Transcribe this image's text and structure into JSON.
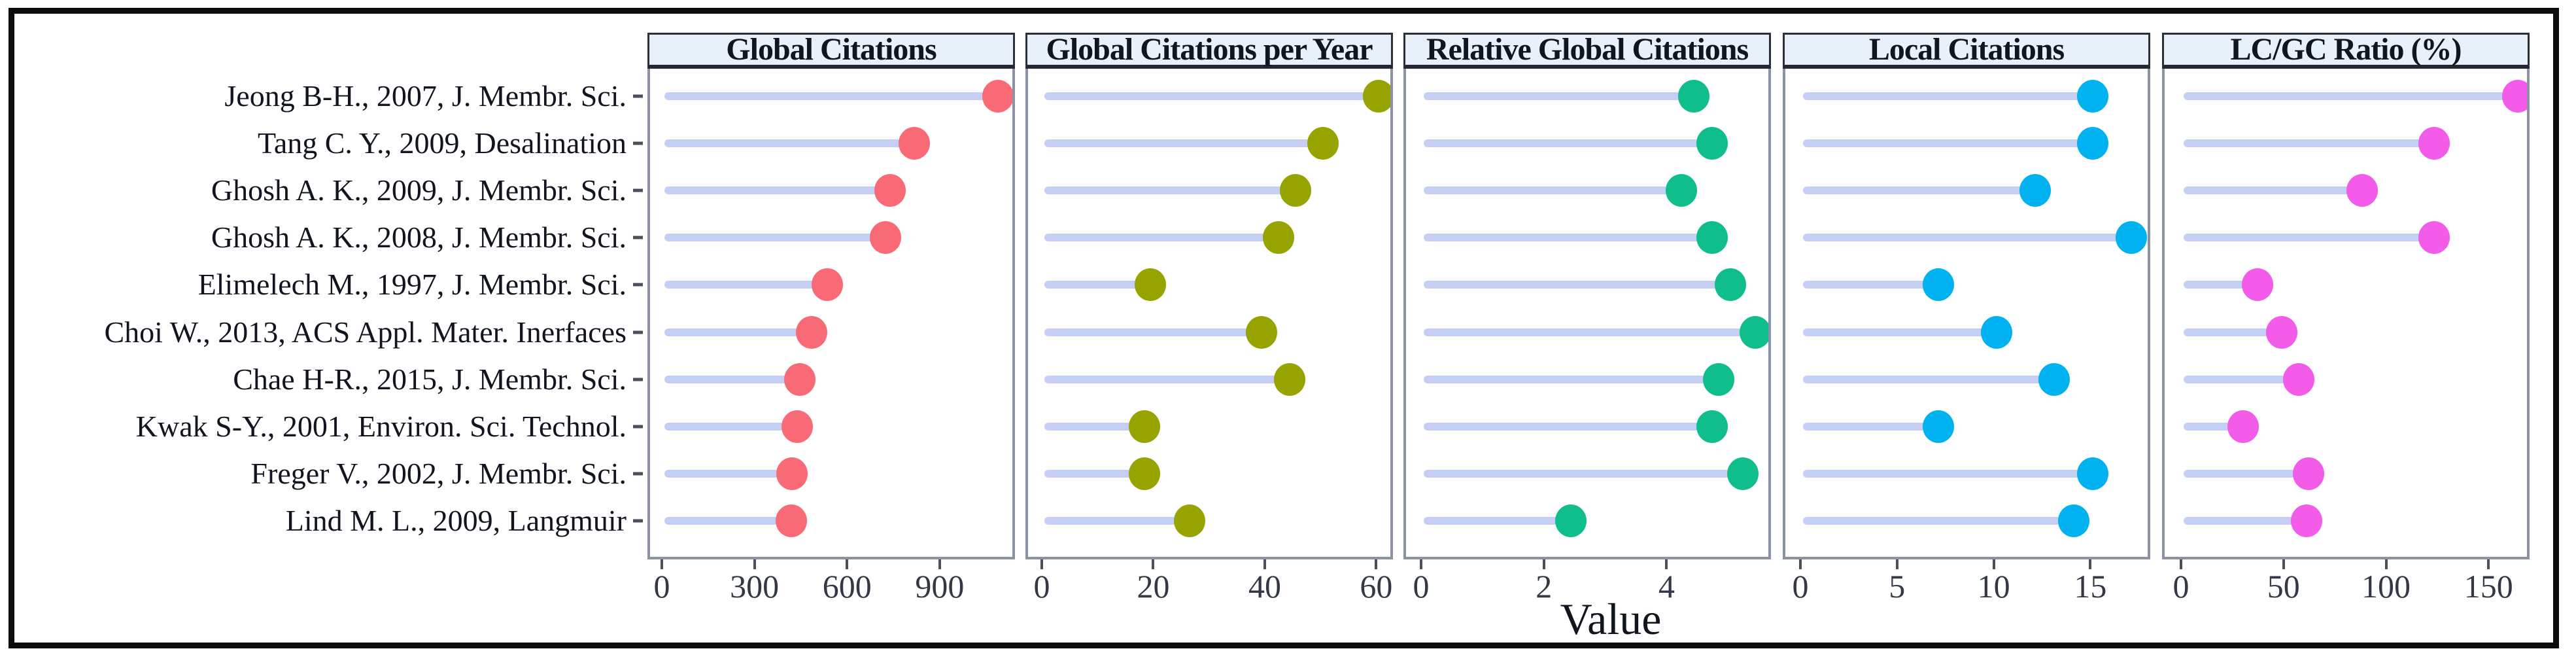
{
  "chart_data": {
    "type": "dot",
    "variant": "faceted horizontal lollipop chart (most cited documents)",
    "xlabel": "Value",
    "grid": "off",
    "legend": "none",
    "rows": [
      "Jeong B-H., 2007, J. Membr. Sci.",
      "Tang C. Y., 2009, Desalination",
      "Ghosh A. K., 2009, J. Membr. Sci.",
      "Ghosh A. K., 2008, J. Membr. Sci.",
      "Elimelech M., 1997, J. Membr. Sci.",
      "Choi W., 2013, ACS Appl. Mater. Inerfaces",
      "Chae H-R., 2015, J. Membr. Sci.",
      "Kwak S-Y., 2001, Environ. Sci. Technol.",
      "Freger V., 2002, J. Membr. Sci.",
      "Lind M. L., 2009, Langmuir"
    ],
    "panels": [
      {
        "title": "Global Citations",
        "color": "#f96a77",
        "ticks": [
          0,
          300,
          600,
          900
        ],
        "xlim": [
          0,
          1144
        ],
        "values": [
          1080,
          810,
          730,
          715,
          527,
          476,
          438,
          430,
          414,
          410
        ]
      },
      {
        "title": "Global Citations per Year",
        "color": "#97a400",
        "ticks": [
          0,
          20,
          40,
          60
        ],
        "xlim": [
          0,
          63
        ],
        "values": [
          60,
          50,
          45,
          42,
          19,
          39,
          44,
          18,
          18,
          26
        ]
      },
      {
        "title": "Relative Global Citations",
        "color": "#10be8c",
        "ticks": [
          0,
          2,
          4
        ],
        "xlim": [
          0,
          5.7
        ],
        "values": [
          4.4,
          4.7,
          4.2,
          4.7,
          5.0,
          5.4,
          4.8,
          4.7,
          5.2,
          2.4
        ]
      },
      {
        "title": "Local Citations",
        "color": "#00b3f0",
        "ticks": [
          0,
          5,
          10,
          15
        ],
        "xlim": [
          0,
          18.1
        ],
        "values": [
          15,
          15,
          12,
          17,
          7,
          10,
          13,
          7,
          15,
          14
        ]
      },
      {
        "title": "LC/GC Ratio (%)",
        "color": "#f25ce9",
        "ticks": [
          0,
          50,
          100,
          150
        ],
        "xlim": [
          0,
          170
        ],
        "values": [
          163,
          122,
          87,
          122,
          36,
          48,
          56,
          29,
          61,
          60
        ]
      }
    ],
    "colors": {
      "stem": "#c5cff5",
      "strip_background": "#e8f1fa",
      "strip_border": "#2a2f3a",
      "panel_border": "#8a92a3",
      "tick_mark": "#4a515c",
      "tick_label": "#333944",
      "text": "#10151f",
      "outer_frame": "#0c0c0c",
      "background": "#ffffff"
    }
  }
}
